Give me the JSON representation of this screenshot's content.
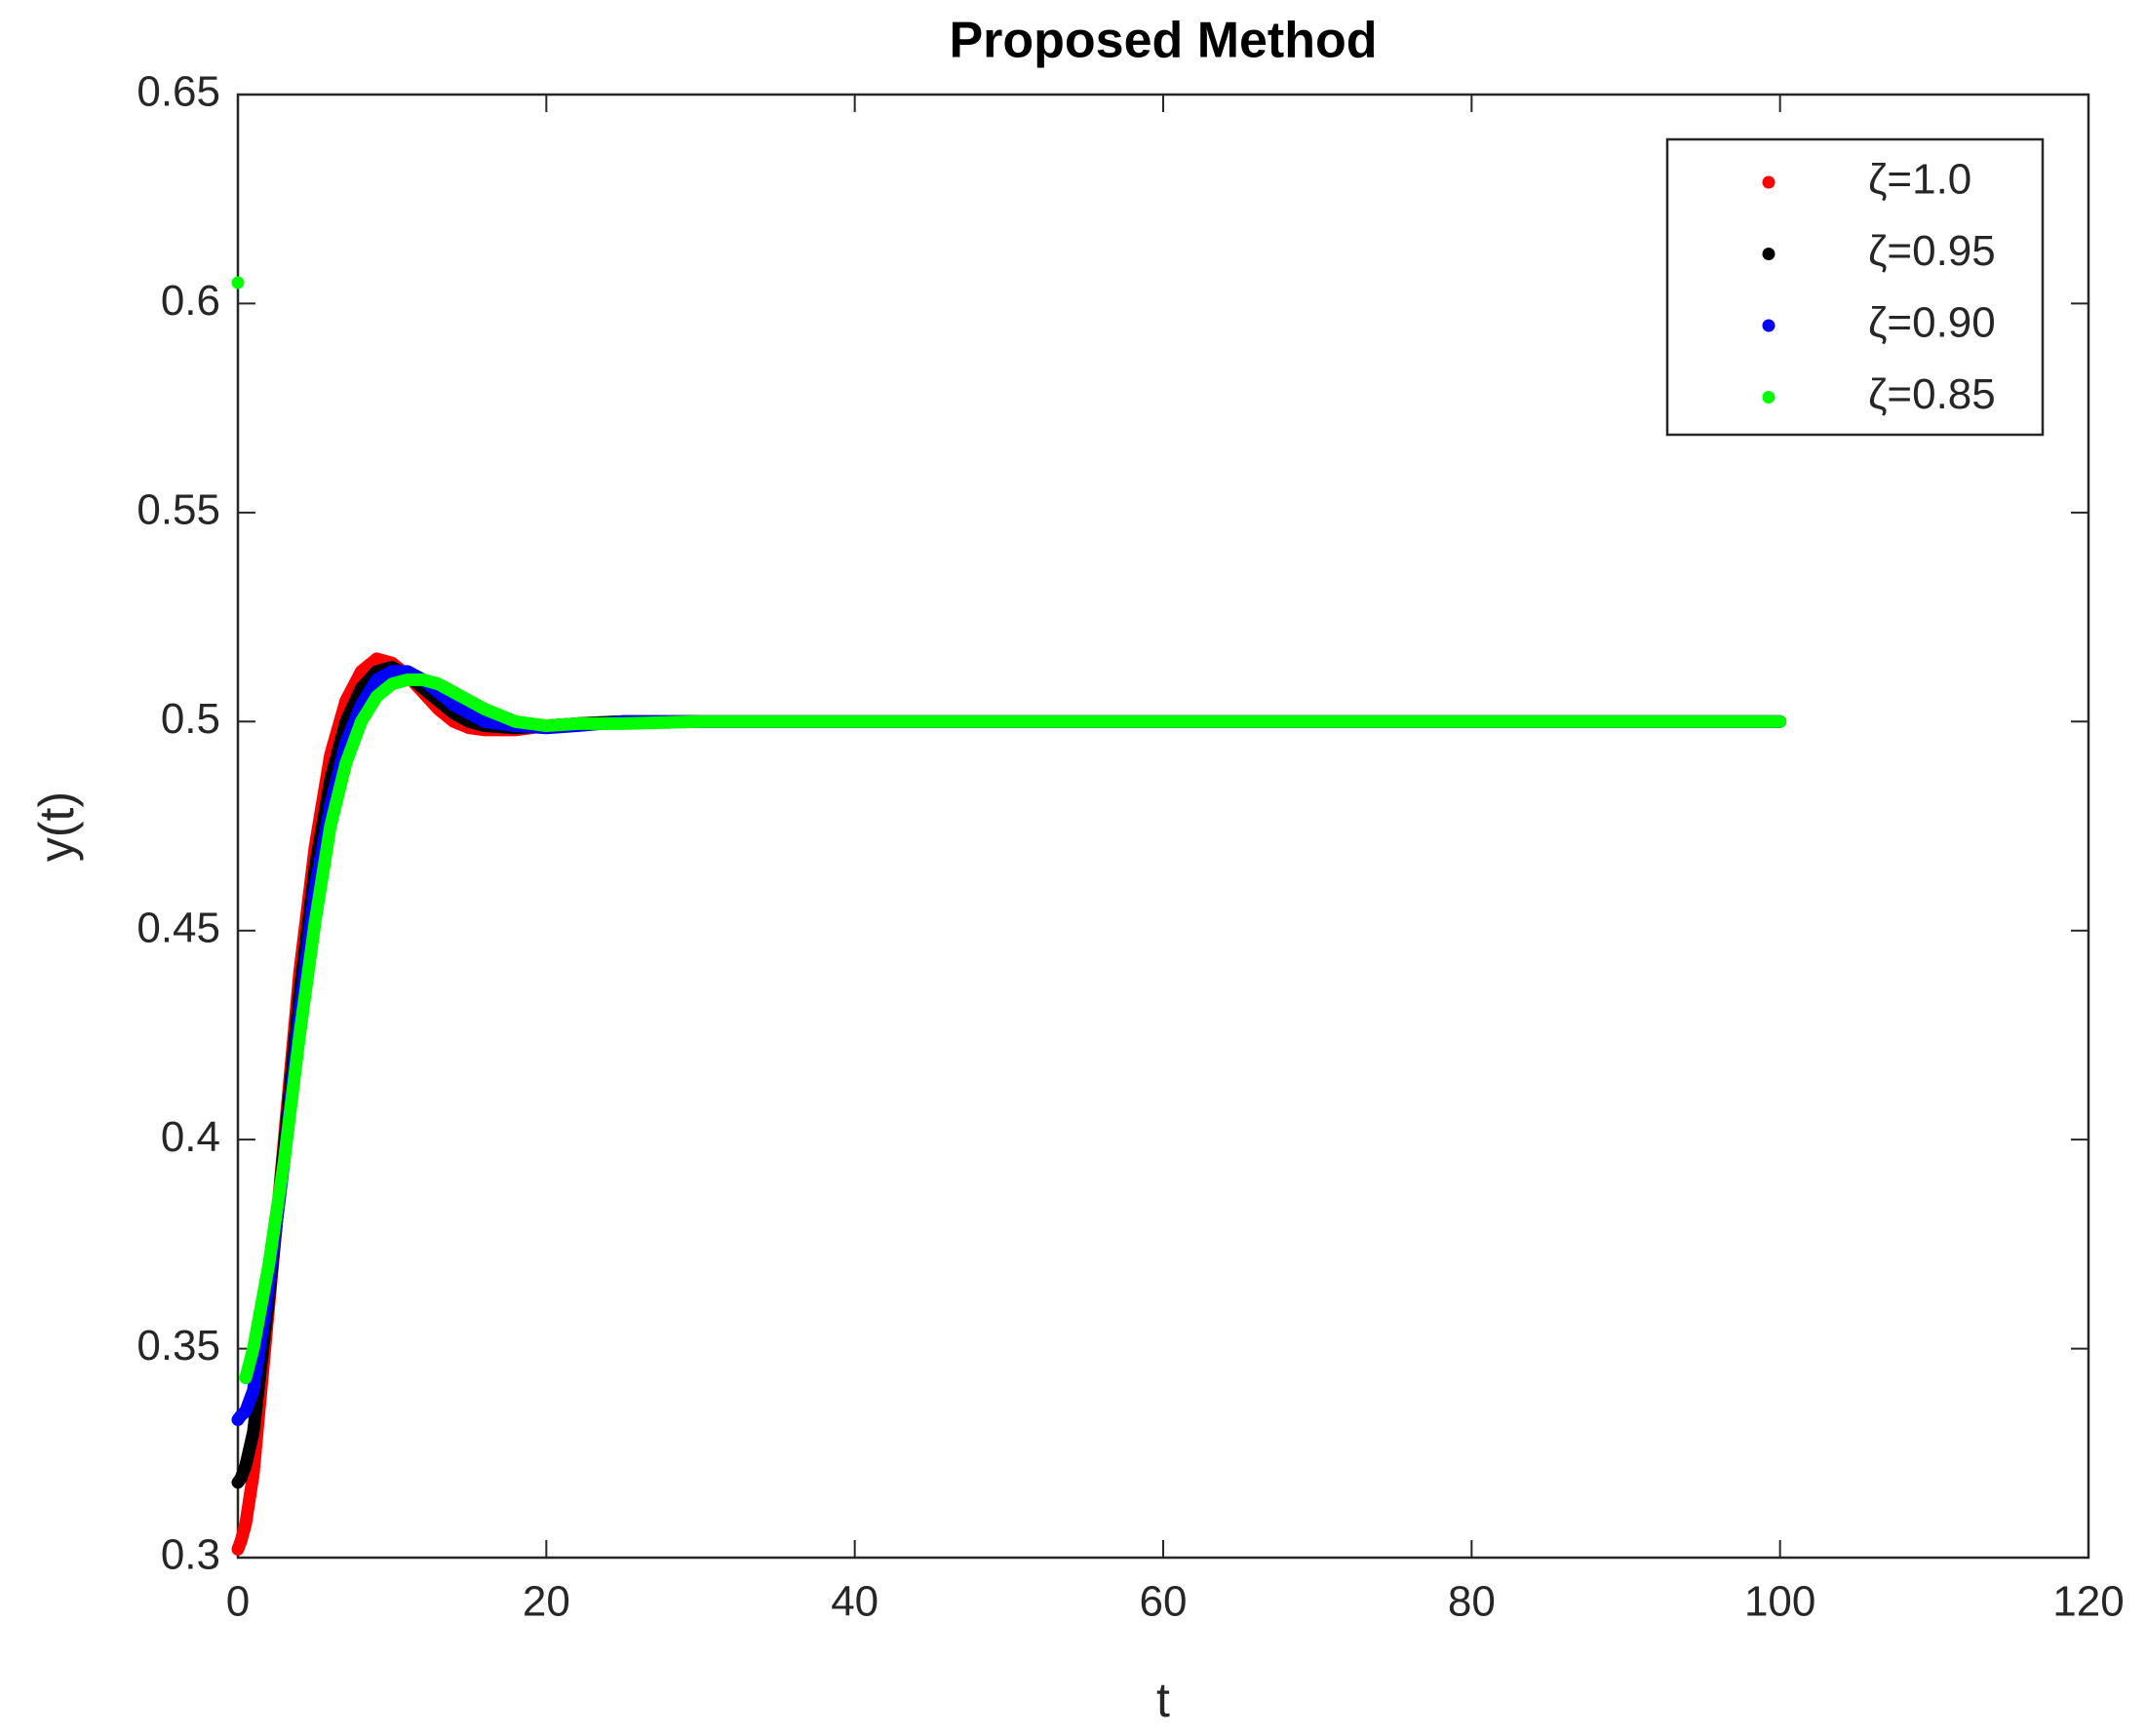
{
  "chart_data": {
    "type": "line",
    "title": "Proposed Method",
    "x_label": "t",
    "y_label": "y(t)",
    "x": [
      0,
      0.2,
      0.5,
      1,
      2,
      3,
      4,
      5,
      6,
      7,
      8,
      9,
      10,
      11,
      12,
      13,
      14,
      15,
      16,
      18,
      20,
      22,
      25,
      30,
      40,
      50,
      60,
      70,
      80,
      90,
      100
    ],
    "series": [
      {
        "name": "ζ=1.0",
        "color": "#ff0000",
        "values": [
          0.302,
          0.304,
          0.308,
          0.32,
          0.36,
          0.4,
          0.44,
          0.47,
          0.492,
          0.505,
          0.512,
          0.515,
          0.514,
          0.511,
          0.507,
          0.503,
          0.5,
          0.4985,
          0.498,
          0.498,
          0.499,
          0.4995,
          0.5,
          0.5,
          0.5,
          0.5,
          0.5,
          0.5,
          0.5,
          0.5,
          0.5
        ]
      },
      {
        "name": "ζ=0.95",
        "color": "#000000",
        "values": [
          0.318,
          0.319,
          0.322,
          0.33,
          0.362,
          0.398,
          0.435,
          0.465,
          0.486,
          0.5,
          0.508,
          0.512,
          0.513,
          0.511,
          0.508,
          0.505,
          0.502,
          0.5,
          0.499,
          0.4985,
          0.499,
          0.4995,
          0.5,
          0.5,
          0.5,
          0.5,
          0.5,
          0.5,
          0.5,
          0.5,
          0.5
        ]
      },
      {
        "name": "ζ=0.90",
        "color": "#0000ff",
        "values": [
          0.333,
          0.334,
          0.335,
          0.34,
          0.365,
          0.395,
          0.43,
          0.46,
          0.48,
          0.495,
          0.504,
          0.51,
          0.512,
          0.512,
          0.51,
          0.507,
          0.504,
          0.502,
          0.5,
          0.499,
          0.4985,
          0.499,
          0.5,
          0.5,
          0.5,
          0.5,
          0.5,
          0.5,
          0.5,
          0.5,
          0.5
        ]
      },
      {
        "name": "ζ=0.85",
        "color": "#00ff00",
        "values": [
          0.605,
          null,
          0.343,
          0.35,
          0.37,
          0.395,
          0.425,
          0.452,
          0.475,
          0.49,
          0.5,
          0.506,
          0.509,
          0.51,
          0.51,
          0.509,
          0.507,
          0.505,
          0.503,
          0.5,
          0.499,
          0.4995,
          0.4995,
          0.5,
          0.5,
          0.5,
          0.5,
          0.5,
          0.5,
          0.5,
          0.5
        ]
      }
    ],
    "xlim": [
      0,
      120
    ],
    "xticks": [
      0,
      20,
      40,
      60,
      80,
      100,
      120
    ],
    "ylim": [
      0.3,
      0.65
    ],
    "yticks": [
      0.3,
      0.35,
      0.4,
      0.45,
      0.5,
      0.55,
      0.6,
      0.65
    ],
    "legend": "top-right",
    "grid": false
  }
}
